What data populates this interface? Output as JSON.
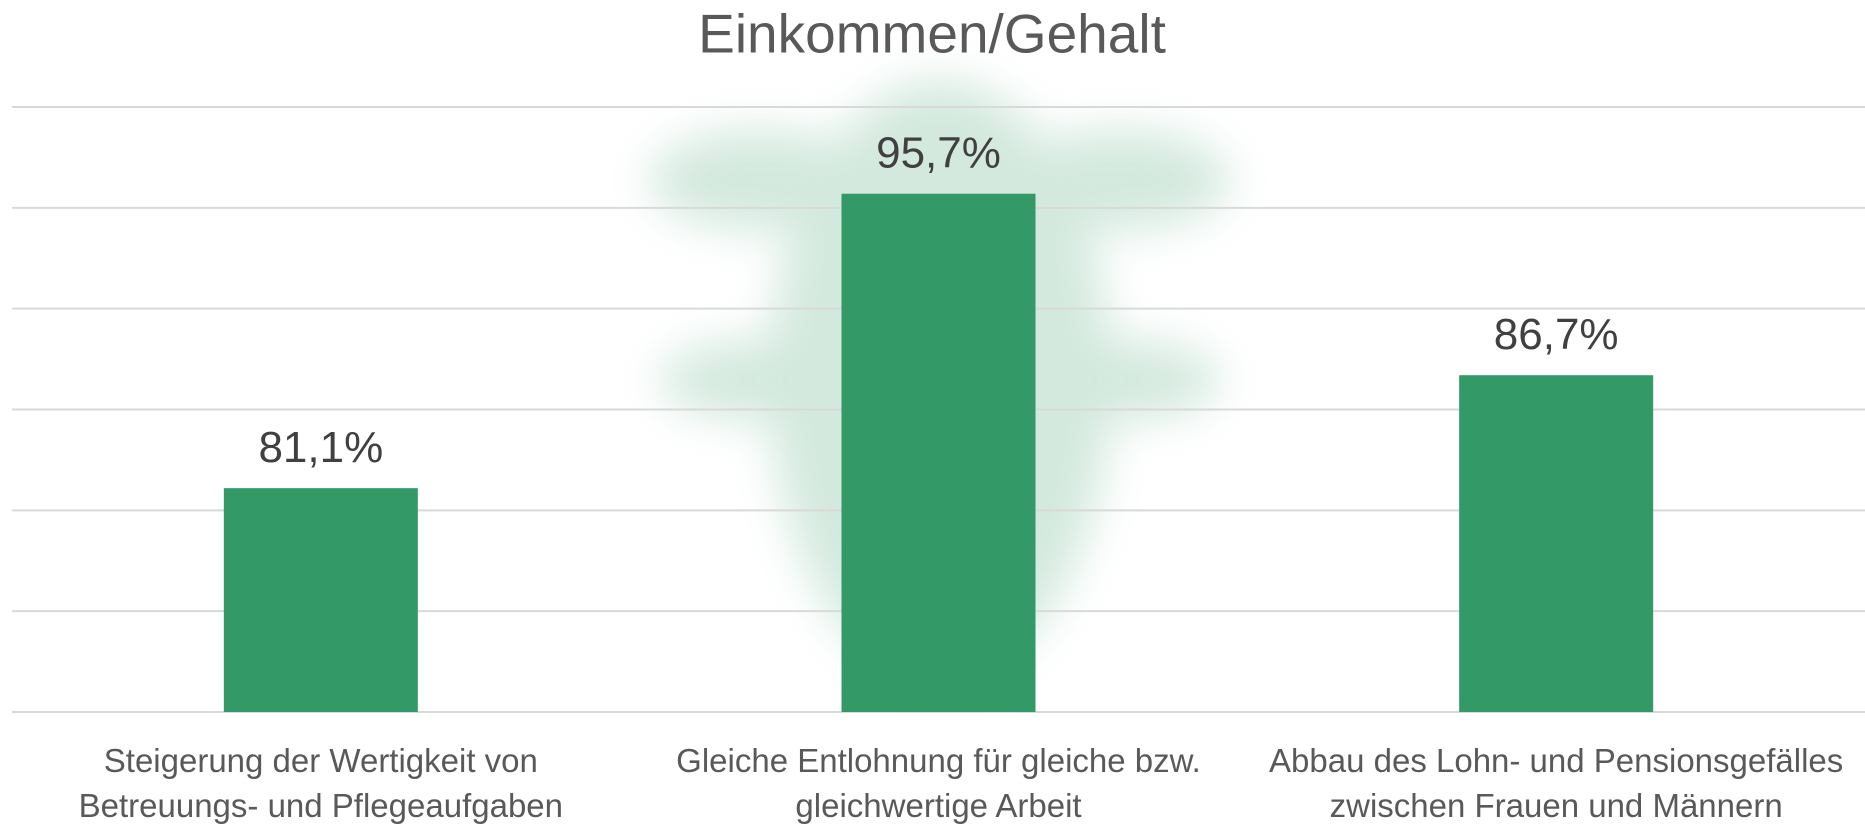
{
  "chart_data": {
    "type": "bar",
    "title": "Einkommen/Gehalt",
    "categories": [
      "Steigerung der Wertigkeit von Betreuungs- und Pflegeaufgaben",
      "Gleiche Entlohnung für gleiche bzw. gleichwertige Arbeit",
      "Abbau des Lohn- und Pensionsgefälles zwischen Frauen und Männern"
    ],
    "values": [
      81.1,
      95.7,
      86.7
    ],
    "value_labels": [
      "81,1%",
      "95,7%",
      "86,7%"
    ],
    "color": "#339966",
    "ylim": [
      70,
      100
    ],
    "yticks": [
      70,
      75,
      80,
      85,
      90,
      95,
      100
    ],
    "grid": true
  }
}
